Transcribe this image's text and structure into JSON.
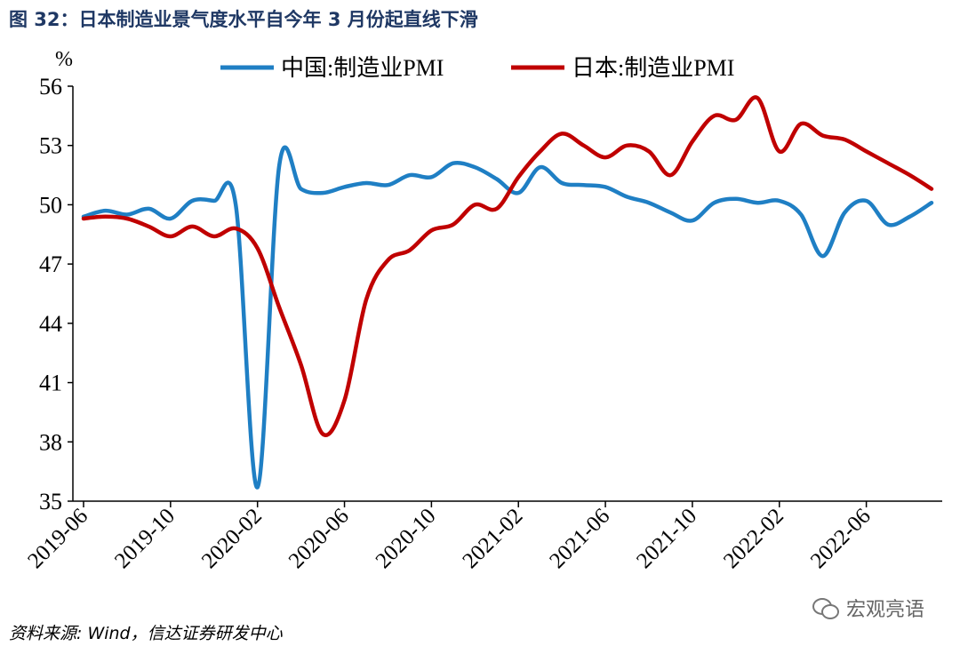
{
  "page": {
    "title": "图 32：日本制造业景气度水平自今年 3 月份起直线下滑",
    "source": "资料来源: Wind，信达证券研发中心",
    "watermark": "宏观亮语"
  },
  "chart_data": {
    "type": "line",
    "title": "",
    "xlabel": "",
    "ylabel": "%",
    "ylim": [
      35,
      56
    ],
    "yticks": [
      35,
      38,
      41,
      44,
      47,
      50,
      53,
      56
    ],
    "xticks": [
      "2019-06",
      "2019-10",
      "2020-02",
      "2020-06",
      "2020-10",
      "2021-02",
      "2021-06",
      "2021-10",
      "2022-02",
      "2022-06"
    ],
    "legend_position": "top",
    "grid": false,
    "x": [
      "2019-06",
      "2019-07",
      "2019-08",
      "2019-09",
      "2019-10",
      "2019-11",
      "2019-12",
      "2020-01",
      "2020-02",
      "2020-03",
      "2020-04",
      "2020-05",
      "2020-06",
      "2020-07",
      "2020-08",
      "2020-09",
      "2020-10",
      "2020-11",
      "2020-12",
      "2021-01",
      "2021-02",
      "2021-03",
      "2021-04",
      "2021-05",
      "2021-06",
      "2021-07",
      "2021-08",
      "2021-09",
      "2021-10",
      "2021-11",
      "2021-12",
      "2022-01",
      "2022-02",
      "2022-03",
      "2022-04",
      "2022-05",
      "2022-06",
      "2022-07",
      "2022-08",
      "2022-09"
    ],
    "series": [
      {
        "name": "中国:制造业PMI",
        "color": "#1f7fc4",
        "values": [
          49.4,
          49.7,
          49.5,
          49.8,
          49.3,
          50.2,
          50.2,
          50.0,
          35.7,
          52.0,
          50.8,
          50.6,
          50.9,
          51.1,
          51.0,
          51.5,
          51.4,
          52.1,
          51.9,
          51.3,
          50.6,
          51.9,
          51.1,
          51.0,
          50.9,
          50.4,
          50.1,
          49.6,
          49.2,
          50.1,
          50.3,
          50.1,
          50.2,
          49.5,
          47.4,
          49.6,
          50.2,
          49.0,
          49.4,
          50.1
        ]
      },
      {
        "name": "日本:制造业PMI",
        "color": "#c00000",
        "values": [
          49.3,
          49.4,
          49.3,
          48.9,
          48.4,
          48.9,
          48.4,
          48.8,
          47.8,
          44.8,
          41.9,
          38.4,
          40.1,
          45.2,
          47.2,
          47.7,
          48.7,
          49.0,
          50.0,
          49.8,
          51.4,
          52.7,
          53.6,
          53.0,
          52.4,
          53.0,
          52.7,
          51.5,
          53.2,
          54.5,
          54.3,
          55.4,
          52.7,
          54.1,
          53.5,
          53.3,
          52.7,
          52.1,
          51.5,
          50.8
        ]
      }
    ]
  }
}
